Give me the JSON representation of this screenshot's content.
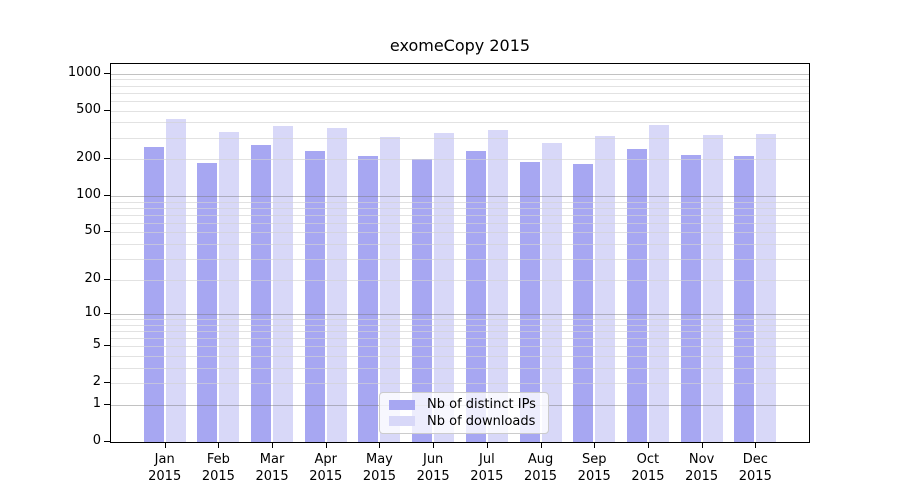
{
  "title": "exomeCopy 2015",
  "colors": {
    "ips": "#a7a7f2",
    "downloads": "#d8d8f8",
    "axis": "#000000",
    "grid_major": "rgba(120,120,120,0.45)",
    "grid_minor": "rgba(210,210,210,0.65)",
    "legend_border": "#cccccc"
  },
  "legend": {
    "position": "lower center",
    "items": [
      {
        "label": "Nb of distinct IPs",
        "color_key": "ips"
      },
      {
        "label": "Nb of downloads",
        "color_key": "downloads"
      }
    ]
  },
  "chart_data": {
    "type": "bar",
    "title": "exomeCopy 2015",
    "xlabel": "",
    "ylabel": "",
    "yscale": "log10(1+x)",
    "ylim": [
      0,
      1200
    ],
    "grid": "horizontal",
    "legend_position": "lower center",
    "categories": [
      "Jan 2015",
      "Feb 2015",
      "Mar 2015",
      "Apr 2015",
      "May 2015",
      "Jun 2015",
      "Jul 2015",
      "Aug 2015",
      "Sep 2015",
      "Oct 2015",
      "Nov 2015",
      "Dec 2015"
    ],
    "series": [
      {
        "name": "Nb of distinct IPs",
        "values": [
          251,
          187,
          261,
          236,
          212,
          202,
          232,
          190,
          183,
          243,
          218,
          212
        ]
      },
      {
        "name": "Nb of downloads",
        "values": [
          430,
          334,
          372,
          363,
          307,
          327,
          345,
          274,
          311,
          384,
          317,
          323
        ]
      }
    ],
    "yticks": [
      0,
      1,
      2,
      5,
      10,
      20,
      50,
      100,
      200,
      500,
      1000
    ],
    "grid_major_at": [
      1,
      10,
      100,
      1000
    ],
    "yticks_minor": [
      2,
      3,
      4,
      5,
      6,
      7,
      8,
      9,
      20,
      30,
      40,
      50,
      60,
      70,
      80,
      90,
      200,
      300,
      400,
      500,
      600,
      700,
      800,
      900
    ]
  }
}
